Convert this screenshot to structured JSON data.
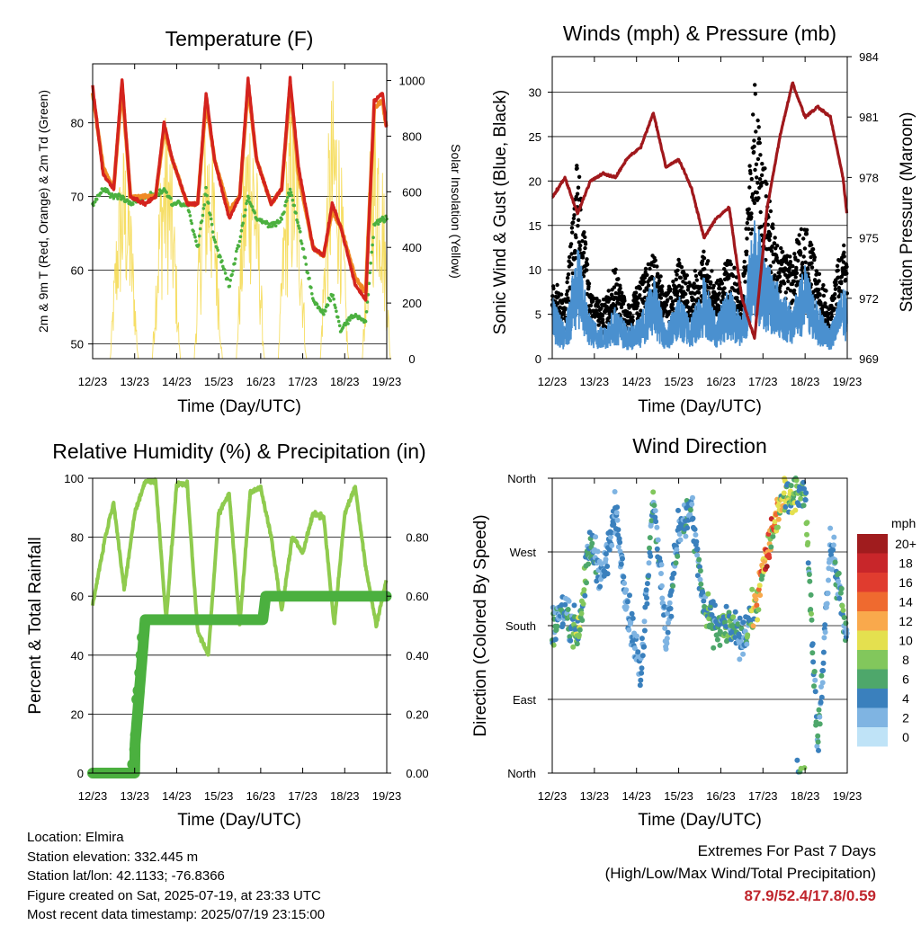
{
  "x_tick_labels": [
    "12/23",
    "13/23",
    "14/23",
    "15/23",
    "16/23",
    "17/23",
    "18/23",
    "19/23"
  ],
  "panels": {
    "temperature": {
      "title": "Temperature (F)",
      "ylabel_left": "2m & 9m T (Red, Orange) & 2m Td (Green)",
      "ylabel_right": "Solar Insolation (Yellow)",
      "xlabel": "Time (Day/UTC)",
      "left_ticks": [
        "50",
        "60",
        "70",
        "80"
      ],
      "right_ticks": [
        "0",
        "200",
        "400",
        "600",
        "800",
        "1000"
      ]
    },
    "winds": {
      "title": "Winds (mph) & Pressure (mb)",
      "ylabel_left": "Sonic Wind & Gust (Blue, Black)",
      "ylabel_right": "Station Pressure (Maroon)",
      "xlabel": "Time (Day/UTC)",
      "left_ticks": [
        "0",
        "5",
        "10",
        "15",
        "20",
        "25",
        "30"
      ],
      "right_ticks": [
        "969",
        "972",
        "975",
        "978",
        "981",
        "984"
      ]
    },
    "humidity": {
      "title": "Relative Humidity (%) & Precipitation (in)",
      "ylabel_left": "Percent & Total Rainfall",
      "xlabel": "Time (Day/UTC)",
      "left_ticks": [
        "0",
        "20",
        "40",
        "60",
        "80",
        "100"
      ],
      "right_ticks": [
        "0.00",
        "0.20",
        "0.40",
        "0.60",
        "0.80"
      ]
    },
    "direction": {
      "title": "Wind Direction",
      "ylabel_left": "Direction (Colored By Speed)",
      "xlabel": "Time (Day/UTC)",
      "left_ticks": [
        "North",
        "East",
        "South",
        "West",
        "North"
      ]
    }
  },
  "colorbar": {
    "title": "mph",
    "labels": [
      "20+",
      "18",
      "16",
      "14",
      "12",
      "10",
      "8",
      "6",
      "4",
      "2",
      "0"
    ],
    "colors": [
      "#a01c1e",
      "#c8262a",
      "#e03c2f",
      "#ef6a2f",
      "#f9a94c",
      "#e4e04f",
      "#82c75c",
      "#4ea76b",
      "#3a80bd",
      "#7fb4e2",
      "#bfe3f7"
    ]
  },
  "info": {
    "location": "Location: Elmira",
    "elevation": "Station elevation: 332.445 m",
    "latlon": "Station lat/lon: 42.1133; -76.8366",
    "created": "Figure created on Sat, 2025-07-19, at 23:33 UTC",
    "recent": "Most recent data timestamp: 2025/07/19 23:15:00"
  },
  "extremes": {
    "heading": "Extremes For Past 7 Days",
    "subheading": "(High/Low/Max Wind/Total Precipitation)",
    "values": "87.9/52.4/17.8/0.59"
  },
  "colors": {
    "temp_2m": "#d4231e",
    "temp_9m": "#f08a24",
    "dewpoint": "#4bb03f",
    "solar": "#f5d84a",
    "wind": "#4a90cf",
    "gust": "#000000",
    "pressure": "#a0181c",
    "rh": "#8fcb4e",
    "precip": "#4bb03f"
  },
  "chart_data": [
    {
      "type": "line",
      "x_unit": "day of month (UTC), July 2025",
      "title": "Temperature (F)",
      "xlabel": "Time (Day/UTC)",
      "ylabel": "2m & 9m T (Red, Orange) & 2m Td (Green)",
      "y2label": "Solar Insolation (Yellow)",
      "xlim": [
        12,
        19
      ],
      "ylim": [
        48,
        88
      ],
      "y2lim": [
        0,
        1060
      ],
      "x": [
        12.0,
        12.25,
        12.5,
        12.7,
        12.9,
        13.25,
        13.5,
        13.7,
        13.9,
        14.25,
        14.5,
        14.7,
        14.9,
        15.25,
        15.5,
        15.7,
        15.9,
        16.25,
        16.5,
        16.7,
        16.9,
        17.25,
        17.5,
        17.7,
        17.9,
        18.25,
        18.5,
        18.7,
        18.9,
        19.0
      ],
      "series": [
        {
          "name": "2m T",
          "values": [
            85,
            73,
            71,
            86,
            70,
            69,
            70,
            80,
            75,
            69,
            69,
            84,
            75,
            67,
            70,
            86,
            75,
            69,
            71,
            86,
            74,
            63,
            62,
            69,
            66,
            58,
            56,
            83,
            84,
            79
          ]
        },
        {
          "name": "9m T",
          "values": [
            84,
            74,
            71,
            85,
            70,
            70,
            70,
            79,
            75,
            69,
            69,
            83,
            75,
            68,
            70,
            85,
            75,
            69,
            71,
            85,
            73,
            63,
            62,
            68,
            66,
            59,
            57,
            82,
            83,
            79
          ]
        },
        {
          "name": "2m Td",
          "values": [
            69,
            71,
            70,
            70,
            69,
            70,
            70,
            71,
            69,
            69,
            63,
            71,
            64,
            58,
            64,
            70,
            67,
            66,
            67,
            71,
            66,
            56,
            54,
            57,
            52,
            54,
            53,
            66,
            67,
            67
          ]
        }
      ],
      "y2_series": {
        "name": "Solar Insolation",
        "peaks_x": [
          12.75,
          13.75,
          14.75,
          15.75,
          16.75,
          17.75,
          18.75
        ],
        "peaks": [
          790,
          900,
          920,
          980,
          960,
          1030,
          1000
        ]
      }
    },
    {
      "type": "scatter",
      "x_unit": "day of month (UTC), July 2025",
      "title": "Winds (mph) & Pressure (mb)",
      "xlabel": "Time (Day/UTC)",
      "ylabel": "Sonic Wind & Gust (Blue, Black)",
      "y2label": "Station Pressure (Maroon)",
      "xlim": [
        12,
        19
      ],
      "ylim": [
        0,
        34
      ],
      "y2lim": [
        969,
        984
      ],
      "x": [
        12.0,
        12.3,
        12.6,
        12.9,
        13.2,
        13.5,
        13.8,
        14.1,
        14.4,
        14.7,
        15.0,
        15.3,
        15.6,
        15.9,
        16.2,
        16.5,
        16.8,
        17.1,
        17.4,
        17.7,
        18.0,
        18.3,
        18.6,
        18.9,
        19.0
      ],
      "series": [
        {
          "name": "Sonic Wind",
          "values": [
            6,
            3,
            11,
            4,
            3,
            5,
            3,
            4,
            8,
            3,
            6,
            4,
            8,
            4,
            7,
            4,
            14,
            9,
            7,
            5,
            9,
            5,
            3,
            7,
            6
          ]
        },
        {
          "name": "Gust",
          "values": [
            9,
            6,
            23,
            8,
            6,
            10,
            6,
            9,
            12,
            7,
            11,
            8,
            12,
            8,
            12,
            7,
            31,
            19,
            13,
            11,
            16,
            10,
            6,
            14,
            10
          ]
        },
        {
          "name": "Station Pressure",
          "y_axis": "right",
          "values": [
            977.0,
            978.0,
            976.2,
            977.8,
            978.2,
            978.0,
            979.0,
            979.5,
            981.2,
            978.5,
            978.9,
            977.5,
            975.0,
            976.0,
            976.5,
            972.0,
            970.0,
            976.5,
            980.0,
            982.7,
            981.0,
            981.5,
            981.0,
            978.0,
            976.0
          ]
        }
      ]
    },
    {
      "type": "line",
      "x_unit": "day of month (UTC), July 2025",
      "title": "Relative Humidity (%) & Precipitation (in)",
      "xlabel": "Time (Day/UTC)",
      "ylabel": "Percent & Total Rainfall",
      "xlim": [
        12,
        19
      ],
      "ylim": [
        0,
        100
      ],
      "y2lim": [
        0,
        1.0
      ],
      "x": [
        12.0,
        12.3,
        12.5,
        12.75,
        13.0,
        13.25,
        13.5,
        13.75,
        14.0,
        14.25,
        14.5,
        14.75,
        15.0,
        15.25,
        15.5,
        15.75,
        16.0,
        16.25,
        16.5,
        16.75,
        17.0,
        17.25,
        17.5,
        17.75,
        18.0,
        18.25,
        18.5,
        18.75,
        19.0
      ],
      "series": [
        {
          "name": "Relative Humidity",
          "values": [
            57,
            80,
            92,
            62,
            88,
            99,
            99,
            52,
            98,
            98,
            48,
            40,
            88,
            95,
            50,
            95,
            97,
            80,
            55,
            80,
            75,
            88,
            87,
            50,
            88,
            97,
            70,
            50,
            66
          ]
        },
        {
          "name": "Total Precipitation",
          "y_axis": "right",
          "values": [
            0,
            0,
            0,
            0,
            0.13,
            0.52,
            0.52,
            0.52,
            0.52,
            0.52,
            0.52,
            0.52,
            0.52,
            0.52,
            0.52,
            0.52,
            0.6,
            0.6,
            0.6,
            0.6,
            0.6,
            0.6,
            0.6,
            0.6,
            0.6,
            0.6,
            0.6,
            0.6,
            0.6
          ]
        }
      ]
    },
    {
      "type": "scatter",
      "x_unit": "day of month (UTC), July 2025",
      "title": "Wind Direction",
      "xlabel": "Time (Day/UTC)",
      "ylabel": "Direction (Colored By Speed)",
      "xlim": [
        12,
        19
      ],
      "ylim": [
        0,
        360
      ],
      "color_by": "wind speed (mph)",
      "x": [
        12.0,
        12.3,
        12.6,
        12.9,
        13.2,
        13.5,
        13.8,
        14.1,
        14.4,
        14.7,
        15.0,
        15.3,
        15.6,
        15.9,
        16.2,
        16.5,
        16.8,
        17.1,
        17.4,
        17.7,
        18.0,
        18.3,
        18.6,
        18.9,
        19.0
      ],
      "series": [
        {
          "name": "Direction",
          "values": [
            180,
            200,
            170,
            280,
            240,
            320,
            200,
            120,
            340,
            160,
            300,
            320,
            200,
            180,
            180,
            160,
            200,
            270,
            330,
            345,
            350,
            30,
            280,
            200,
            150
          ]
        },
        {
          "name": "Speed",
          "values": [
            6,
            4,
            8,
            5,
            3,
            4,
            3,
            4,
            6,
            3,
            5,
            4,
            6,
            5,
            7,
            4,
            10,
            15,
            10,
            8,
            7,
            5,
            3,
            6,
            5
          ]
        }
      ]
    }
  ]
}
